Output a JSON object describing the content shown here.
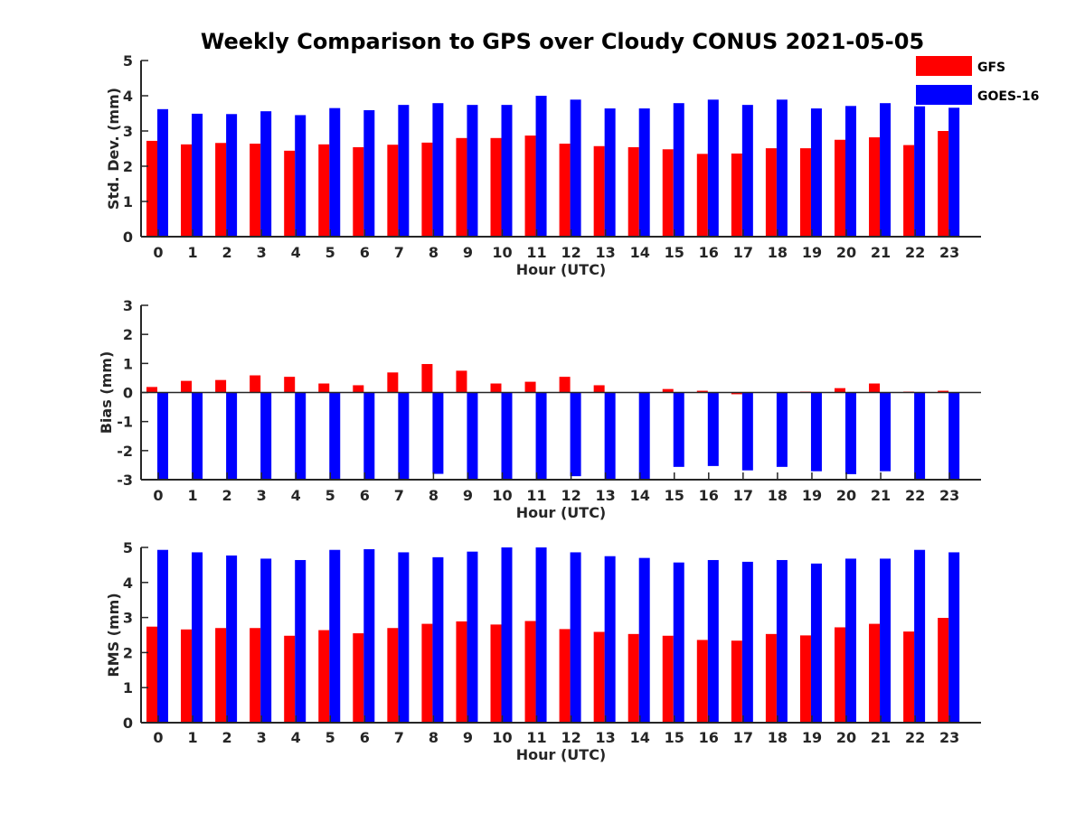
{
  "figure": {
    "title": "Weekly Comparison to GPS over Cloudy CONUS 2021-05-05"
  },
  "colors": {
    "GFS": "#ff0000",
    "GOES-16": "#0000ff",
    "axis": "#262626"
  },
  "legend": {
    "placement": "top-right",
    "items": [
      {
        "label": "GFS",
        "color": "#ff0000"
      },
      {
        "label": "GOES-16",
        "color": "#0000ff"
      }
    ]
  },
  "chart_data": [
    {
      "type": "bar",
      "ylabel": "Std. Dev. (mm)",
      "xlabel": "Hour (UTC)",
      "ylim": [
        0,
        5
      ],
      "yticks": [
        "0",
        "1",
        "2",
        "3",
        "4",
        "5"
      ],
      "categories": [
        "0",
        "1",
        "2",
        "3",
        "4",
        "5",
        "6",
        "7",
        "8",
        "9",
        "10",
        "11",
        "12",
        "13",
        "14",
        "15",
        "16",
        "17",
        "18",
        "19",
        "20",
        "21",
        "22",
        "23"
      ],
      "series": [
        {
          "name": "GFS",
          "values": [
            2.72,
            2.62,
            2.66,
            2.64,
            2.44,
            2.62,
            2.54,
            2.61,
            2.67,
            2.8,
            2.8,
            2.87,
            2.64,
            2.57,
            2.54,
            2.48,
            2.35,
            2.36,
            2.51,
            2.51,
            2.75,
            2.82,
            2.6,
            3.0
          ]
        },
        {
          "name": "GOES-16",
          "values": [
            3.62,
            3.49,
            3.48,
            3.56,
            3.45,
            3.65,
            3.59,
            3.74,
            3.79,
            3.74,
            3.74,
            4.0,
            3.89,
            3.64,
            3.64,
            3.79,
            3.89,
            3.74,
            3.89,
            3.64,
            3.71,
            3.79,
            3.7,
            3.66
          ]
        }
      ]
    },
    {
      "type": "bar",
      "ylabel": "Bias (mm)",
      "xlabel": "Hour (UTC)",
      "ylim": [
        -3,
        3
      ],
      "yticks": [
        "-3",
        "-2",
        "-1",
        "0",
        "1",
        "2",
        "3"
      ],
      "categories": [
        "0",
        "1",
        "2",
        "3",
        "4",
        "5",
        "6",
        "7",
        "8",
        "9",
        "10",
        "11",
        "12",
        "13",
        "14",
        "15",
        "16",
        "17",
        "18",
        "19",
        "20",
        "21",
        "22",
        "23"
      ],
      "series": [
        {
          "name": "GFS",
          "values": [
            0.19,
            0.4,
            0.43,
            0.59,
            0.54,
            0.31,
            0.25,
            0.69,
            0.98,
            0.75,
            0.31,
            0.37,
            0.54,
            0.25,
            0.0,
            0.12,
            0.06,
            -0.06,
            0.0,
            0.03,
            0.15,
            0.31,
            0.03,
            0.06
          ]
        },
        {
          "name": "GOES-16",
          "values": [
            -3.0,
            -3.0,
            -3.0,
            -3.0,
            -3.0,
            -3.0,
            -3.0,
            -3.0,
            -2.8,
            -3.0,
            -3.0,
            -3.0,
            -2.88,
            -3.0,
            -2.97,
            -2.56,
            -2.53,
            -2.68,
            -2.56,
            -2.71,
            -2.81,
            -2.71,
            -3.0,
            -3.0
          ]
        }
      ]
    },
    {
      "type": "bar",
      "ylabel": "RMS (mm)",
      "xlabel": "Hour (UTC)",
      "ylim": [
        0,
        5
      ],
      "yticks": [
        "0",
        "1",
        "2",
        "3",
        "4",
        "5"
      ],
      "categories": [
        "0",
        "1",
        "2",
        "3",
        "4",
        "5",
        "6",
        "7",
        "8",
        "9",
        "10",
        "11",
        "12",
        "13",
        "14",
        "15",
        "16",
        "17",
        "18",
        "19",
        "20",
        "21",
        "22",
        "23"
      ],
      "series": [
        {
          "name": "GFS",
          "values": [
            2.74,
            2.66,
            2.7,
            2.7,
            2.48,
            2.64,
            2.55,
            2.7,
            2.82,
            2.89,
            2.8,
            2.9,
            2.67,
            2.59,
            2.53,
            2.48,
            2.36,
            2.34,
            2.53,
            2.49,
            2.72,
            2.82,
            2.6,
            2.99
          ]
        },
        {
          "name": "GOES-16",
          "values": [
            4.93,
            4.86,
            4.77,
            4.68,
            4.64,
            4.93,
            4.95,
            4.86,
            4.72,
            4.88,
            5.0,
            5.0,
            4.86,
            4.75,
            4.7,
            4.57,
            4.64,
            4.59,
            4.64,
            4.54,
            4.68,
            4.68,
            4.93,
            4.86
          ]
        }
      ]
    }
  ]
}
